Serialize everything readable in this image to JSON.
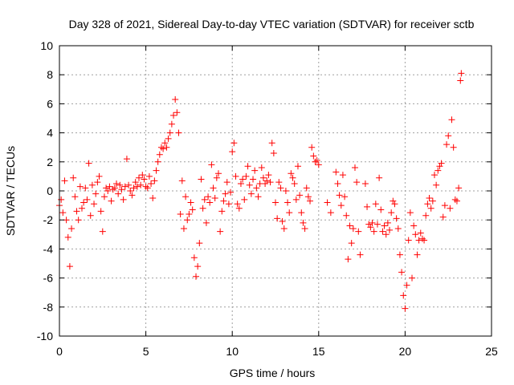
{
  "chart_data": {
    "type": "scatter",
    "title": "Day 328 of 2021, Sidereal Day-to-day VTEC variation (SDTVAR) for receiver sctb",
    "xlabel": "GPS time / hours",
    "ylabel": "SDTVAR / TECUs",
    "xlim": [
      0,
      25
    ],
    "ylim": [
      -10,
      10
    ],
    "xticks": [
      0,
      5,
      10,
      15,
      20,
      25
    ],
    "yticks": [
      -10,
      -8,
      -6,
      -4,
      -2,
      0,
      2,
      4,
      6,
      8,
      10
    ],
    "grid": true,
    "marker": "+",
    "series": [
      {
        "name": "SDTVAR",
        "color": "#ff0000",
        "points": [
          [
            0.0,
            -1.0
          ],
          [
            0.1,
            -0.6
          ],
          [
            0.2,
            -1.5
          ],
          [
            0.3,
            0.7
          ],
          [
            0.4,
            -2.0
          ],
          [
            0.5,
            -3.2
          ],
          [
            0.6,
            -5.2
          ],
          [
            0.7,
            -2.6
          ],
          [
            0.8,
            0.9
          ],
          [
            0.9,
            -0.4
          ],
          [
            1.0,
            -1.4
          ],
          [
            1.1,
            -2.0
          ],
          [
            1.2,
            0.3
          ],
          [
            1.3,
            -1.2
          ],
          [
            1.4,
            -0.8
          ],
          [
            1.5,
            0.2
          ],
          [
            1.6,
            -0.6
          ],
          [
            1.7,
            1.9
          ],
          [
            1.8,
            -1.7
          ],
          [
            1.9,
            0.4
          ],
          [
            2.0,
            -0.9
          ],
          [
            2.1,
            -0.2
          ],
          [
            2.2,
            0.6
          ],
          [
            2.3,
            1.0
          ],
          [
            2.4,
            -1.4
          ],
          [
            2.5,
            -2.8
          ],
          [
            2.6,
            -0.4
          ],
          [
            2.7,
            0.2
          ],
          [
            2.8,
            0.0
          ],
          [
            2.9,
            0.3
          ],
          [
            3.0,
            -0.7
          ],
          [
            3.1,
            0.1
          ],
          [
            3.2,
            0.2
          ],
          [
            3.3,
            0.5
          ],
          [
            3.4,
            -0.2
          ],
          [
            3.5,
            0.4
          ],
          [
            3.6,
            0.1
          ],
          [
            3.7,
            -0.6
          ],
          [
            3.8,
            0.3
          ],
          [
            3.9,
            2.2
          ],
          [
            4.0,
            0.4
          ],
          [
            4.1,
            0.0
          ],
          [
            4.2,
            -0.3
          ],
          [
            4.3,
            0.2
          ],
          [
            4.4,
            0.6
          ],
          [
            4.5,
            0.3
          ],
          [
            4.6,
            0.9
          ],
          [
            4.7,
            0.4
          ],
          [
            4.8,
            1.1
          ],
          [
            4.9,
            0.8
          ],
          [
            5.0,
            0.3
          ],
          [
            5.1,
            0.2
          ],
          [
            5.2,
            1.0
          ],
          [
            5.3,
            0.5
          ],
          [
            5.4,
            -0.5
          ],
          [
            5.5,
            0.7
          ],
          [
            5.6,
            1.4
          ],
          [
            5.7,
            2.0
          ],
          [
            5.8,
            2.5
          ],
          [
            5.9,
            3.0
          ],
          [
            6.0,
            2.9
          ],
          [
            6.1,
            3.3
          ],
          [
            6.2,
            3.0
          ],
          [
            6.3,
            3.6
          ],
          [
            6.4,
            4.0
          ],
          [
            6.5,
            4.6
          ],
          [
            6.6,
            5.2
          ],
          [
            6.7,
            6.3
          ],
          [
            6.8,
            5.4
          ],
          [
            6.9,
            4.0
          ],
          [
            7.0,
            -1.6
          ],
          [
            7.1,
            0.7
          ],
          [
            7.2,
            -2.6
          ],
          [
            7.3,
            -0.4
          ],
          [
            7.4,
            -2.0
          ],
          [
            7.5,
            -1.6
          ],
          [
            7.6,
            -0.8
          ],
          [
            7.7,
            -1.3
          ],
          [
            7.8,
            -4.6
          ],
          [
            7.9,
            -5.9
          ],
          [
            8.0,
            -5.2
          ],
          [
            8.1,
            -3.6
          ],
          [
            8.2,
            0.8
          ],
          [
            8.3,
            -1.2
          ],
          [
            8.4,
            -0.6
          ],
          [
            8.5,
            -2.2
          ],
          [
            8.6,
            -0.4
          ],
          [
            8.7,
            -0.8
          ],
          [
            8.8,
            1.8
          ],
          [
            8.9,
            0.2
          ],
          [
            9.0,
            -0.5
          ],
          [
            9.1,
            0.9
          ],
          [
            9.2,
            1.2
          ],
          [
            9.3,
            -2.8
          ],
          [
            9.4,
            -1.4
          ],
          [
            9.5,
            -0.7
          ],
          [
            9.6,
            -0.2
          ],
          [
            9.7,
            0.6
          ],
          [
            9.8,
            -0.9
          ],
          [
            9.9,
            -0.1
          ],
          [
            10.0,
            2.7
          ],
          [
            10.1,
            3.3
          ],
          [
            10.2,
            1.0
          ],
          [
            10.3,
            -0.9
          ],
          [
            10.4,
            -1.2
          ],
          [
            10.5,
            0.5
          ],
          [
            10.6,
            0.8
          ],
          [
            10.7,
            -0.6
          ],
          [
            10.8,
            1.0
          ],
          [
            10.9,
            1.7
          ],
          [
            11.0,
            0.4
          ],
          [
            11.1,
            -0.2
          ],
          [
            11.2,
            0.8
          ],
          [
            11.3,
            1.4
          ],
          [
            11.4,
            0.2
          ],
          [
            11.5,
            -0.4
          ],
          [
            11.6,
            0.5
          ],
          [
            11.7,
            1.6
          ],
          [
            11.8,
            0.9
          ],
          [
            11.9,
            0.5
          ],
          [
            12.0,
            0.7
          ],
          [
            12.1,
            1.1
          ],
          [
            12.2,
            0.6
          ],
          [
            12.3,
            3.3
          ],
          [
            12.4,
            2.6
          ],
          [
            12.5,
            -0.8
          ],
          [
            12.6,
            -1.9
          ],
          [
            12.7,
            0.6
          ],
          [
            12.8,
            0.2
          ],
          [
            12.9,
            -2.1
          ],
          [
            13.0,
            -2.6
          ],
          [
            13.1,
            0.0
          ],
          [
            13.2,
            -0.8
          ],
          [
            13.3,
            -1.5
          ],
          [
            13.4,
            1.2
          ],
          [
            13.5,
            0.9
          ],
          [
            13.6,
            0.5
          ],
          [
            13.7,
            -0.6
          ],
          [
            13.8,
            1.7
          ],
          [
            13.9,
            -0.3
          ],
          [
            14.0,
            -1.5
          ],
          [
            14.1,
            -2.2
          ],
          [
            14.2,
            -2.6
          ],
          [
            14.3,
            0.2
          ],
          [
            14.4,
            -0.4
          ],
          [
            14.5,
            -0.7
          ],
          [
            14.6,
            3.0
          ],
          [
            14.7,
            2.4
          ],
          [
            14.8,
            2.0
          ],
          [
            14.9,
            2.1
          ],
          [
            15.0,
            1.8
          ],
          [
            15.5,
            -0.8
          ],
          [
            15.7,
            -1.5
          ],
          [
            16.0,
            1.3
          ],
          [
            16.1,
            0.5
          ],
          [
            16.2,
            -0.3
          ],
          [
            16.3,
            -1.0
          ],
          [
            16.4,
            1.1
          ],
          [
            16.5,
            -0.4
          ],
          [
            16.6,
            -1.7
          ],
          [
            16.7,
            -4.7
          ],
          [
            16.8,
            -2.4
          ],
          [
            16.9,
            -3.6
          ],
          [
            17.0,
            -2.6
          ],
          [
            17.1,
            1.6
          ],
          [
            17.2,
            0.6
          ],
          [
            17.3,
            -2.8
          ],
          [
            17.4,
            -4.4
          ],
          [
            17.7,
            0.5
          ],
          [
            17.8,
            -1.1
          ],
          [
            17.9,
            -2.3
          ],
          [
            18.0,
            -2.5
          ],
          [
            18.1,
            -2.2
          ],
          [
            18.2,
            -2.8
          ],
          [
            18.3,
            -0.9
          ],
          [
            18.4,
            -2.3
          ],
          [
            18.5,
            0.9
          ],
          [
            18.6,
            -1.3
          ],
          [
            18.7,
            -2.8
          ],
          [
            18.8,
            -2.4
          ],
          [
            18.9,
            -3.0
          ],
          [
            19.0,
            -2.2
          ],
          [
            19.1,
            -2.7
          ],
          [
            19.2,
            -1.5
          ],
          [
            19.3,
            -0.7
          ],
          [
            19.4,
            -0.9
          ],
          [
            19.5,
            -1.9
          ],
          [
            19.6,
            -2.6
          ],
          [
            19.7,
            -4.4
          ],
          [
            19.8,
            -5.6
          ],
          [
            19.9,
            -7.2
          ],
          [
            20.0,
            -8.1
          ],
          [
            20.1,
            -6.5
          ],
          [
            20.2,
            -3.4
          ],
          [
            20.3,
            -1.5
          ],
          [
            20.4,
            -6.0
          ],
          [
            20.5,
            -2.4
          ],
          [
            20.6,
            -3.0
          ],
          [
            20.7,
            -4.4
          ],
          [
            20.8,
            -3.4
          ],
          [
            20.9,
            -2.9
          ],
          [
            21.0,
            -3.3
          ],
          [
            21.1,
            -3.4
          ],
          [
            21.2,
            -1.7
          ],
          [
            21.3,
            -0.9
          ],
          [
            21.4,
            -0.5
          ],
          [
            21.5,
            -1.2
          ],
          [
            21.6,
            -0.7
          ],
          [
            21.7,
            1.1
          ],
          [
            21.8,
            0.4
          ],
          [
            21.9,
            1.4
          ],
          [
            22.0,
            1.7
          ],
          [
            22.1,
            1.9
          ],
          [
            22.2,
            -1.8
          ],
          [
            22.3,
            -1.0
          ],
          [
            22.4,
            3.2
          ],
          [
            22.5,
            3.8
          ],
          [
            22.6,
            -1.2
          ],
          [
            22.7,
            4.9
          ],
          [
            22.8,
            3.0
          ],
          [
            22.9,
            -0.6
          ],
          [
            23.0,
            -0.7
          ],
          [
            23.1,
            0.2
          ],
          [
            23.2,
            7.6
          ],
          [
            23.25,
            8.1
          ]
        ]
      }
    ]
  }
}
